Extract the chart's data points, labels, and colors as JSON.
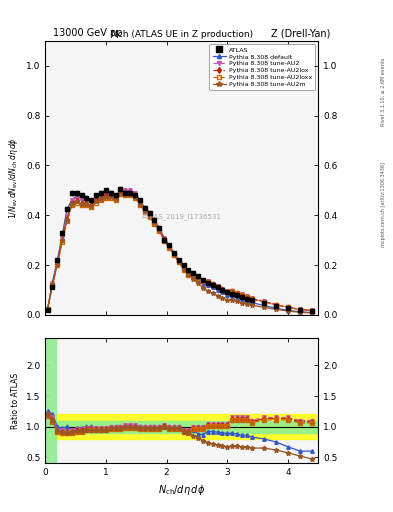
{
  "title": "Nch (ATLAS UE in Z production)",
  "top_left_label": "13000 GeV pp",
  "top_right_label": "Z (Drell-Yan)",
  "watermark": "ATLAS_2019_I1736531",
  "rivet_label": "Rivet 3.1.10, ≥ 2.6M events",
  "arxiv_label": "mcplots.cern.ch [arXiv:1306.3436]",
  "xlim": [
    0,
    4.5
  ],
  "ylim_main": [
    0,
    1.1
  ],
  "ylim_ratio": [
    0.4,
    2.45
  ],
  "x": [
    0.04,
    0.12,
    0.2,
    0.28,
    0.36,
    0.44,
    0.52,
    0.6,
    0.68,
    0.76,
    0.84,
    0.92,
    1.0,
    1.08,
    1.16,
    1.24,
    1.32,
    1.4,
    1.48,
    1.56,
    1.64,
    1.72,
    1.8,
    1.88,
    1.96,
    2.04,
    2.12,
    2.2,
    2.28,
    2.36,
    2.44,
    2.52,
    2.6,
    2.68,
    2.76,
    2.84,
    2.92,
    3.0,
    3.08,
    3.16,
    3.24,
    3.32,
    3.4,
    3.6,
    3.8,
    4.0,
    4.2,
    4.4
  ],
  "atlas_y": [
    0.02,
    0.11,
    0.22,
    0.33,
    0.425,
    0.49,
    0.49,
    0.48,
    0.47,
    0.46,
    0.48,
    0.49,
    0.5,
    0.49,
    0.48,
    0.505,
    0.49,
    0.49,
    0.48,
    0.46,
    0.43,
    0.41,
    0.38,
    0.35,
    0.3,
    0.28,
    0.25,
    0.22,
    0.2,
    0.18,
    0.17,
    0.155,
    0.14,
    0.13,
    0.12,
    0.11,
    0.1,
    0.09,
    0.085,
    0.078,
    0.072,
    0.065,
    0.06,
    0.047,
    0.036,
    0.027,
    0.02,
    0.016
  ],
  "atlas_yerr": [
    0.002,
    0.004,
    0.005,
    0.006,
    0.007,
    0.008,
    0.007,
    0.007,
    0.007,
    0.007,
    0.007,
    0.007,
    0.007,
    0.007,
    0.007,
    0.007,
    0.007,
    0.007,
    0.007,
    0.006,
    0.006,
    0.006,
    0.005,
    0.005,
    0.005,
    0.004,
    0.004,
    0.004,
    0.003,
    0.003,
    0.003,
    0.003,
    0.002,
    0.002,
    0.002,
    0.002,
    0.002,
    0.002,
    0.002,
    0.001,
    0.001,
    0.001,
    0.001,
    0.001,
    0.001,
    0.001,
    0.001,
    0.001
  ],
  "pdef_ratio": [
    1.25,
    1.2,
    1.0,
    0.97,
    1.0,
    0.94,
    0.98,
    0.98,
    1.0,
    1.0,
    0.98,
    0.98,
    0.98,
    0.98,
    0.98,
    1.0,
    1.02,
    1.02,
    1.02,
    1.0,
    1.0,
    1.0,
    1.0,
    1.0,
    1.03,
    1.0,
    1.0,
    1.0,
    0.95,
    0.94,
    0.94,
    0.88,
    0.87,
    0.92,
    0.92,
    0.91,
    0.9,
    0.89,
    0.89,
    0.88,
    0.86,
    0.86,
    0.83,
    0.8,
    0.75,
    0.67,
    0.6,
    0.6
  ],
  "pau2_ratio": [
    1.2,
    1.15,
    0.95,
    0.94,
    0.93,
    0.94,
    0.96,
    0.96,
    0.98,
    0.98,
    0.98,
    0.98,
    0.98,
    1.0,
    1.0,
    1.0,
    1.02,
    1.02,
    1.02,
    1.0,
    1.0,
    1.0,
    1.0,
    1.0,
    1.03,
    1.0,
    1.0,
    1.0,
    0.95,
    0.94,
    1.0,
    1.0,
    1.0,
    1.05,
    1.05,
    1.05,
    1.05,
    1.05,
    1.15,
    1.15,
    1.15,
    1.15,
    1.1,
    1.15,
    1.15,
    1.15,
    1.1,
    1.1
  ],
  "pau2lox_ratio": [
    1.2,
    1.1,
    0.93,
    0.91,
    0.91,
    0.92,
    0.94,
    0.94,
    0.96,
    0.96,
    0.96,
    0.96,
    0.96,
    0.98,
    0.98,
    0.98,
    1.0,
    1.0,
    1.0,
    0.98,
    0.98,
    0.98,
    0.98,
    0.98,
    1.01,
    0.98,
    0.98,
    0.98,
    0.93,
    0.92,
    0.98,
    0.98,
    0.98,
    1.03,
    1.03,
    1.03,
    1.03,
    1.03,
    1.13,
    1.13,
    1.13,
    1.13,
    1.08,
    1.13,
    1.13,
    1.13,
    1.08,
    1.08
  ],
  "pau2loxx_ratio": [
    1.18,
    1.08,
    0.91,
    0.89,
    0.89,
    0.9,
    0.92,
    0.92,
    0.94,
    0.94,
    0.94,
    0.94,
    0.94,
    0.96,
    0.96,
    0.96,
    0.98,
    0.98,
    0.98,
    0.96,
    0.96,
    0.96,
    0.96,
    0.96,
    0.99,
    0.96,
    0.96,
    0.96,
    0.91,
    0.9,
    0.96,
    0.96,
    0.96,
    1.01,
    1.01,
    1.01,
    1.01,
    1.01,
    1.11,
    1.11,
    1.11,
    1.11,
    1.06,
    1.11,
    1.11,
    1.11,
    1.06,
    1.06
  ],
  "pau2m_ratio": [
    1.2,
    1.12,
    0.93,
    0.91,
    0.9,
    0.91,
    0.93,
    0.93,
    0.95,
    0.95,
    0.95,
    0.95,
    0.95,
    0.97,
    0.97,
    0.97,
    0.99,
    0.99,
    0.99,
    0.97,
    0.97,
    0.97,
    0.97,
    0.97,
    1.0,
    0.97,
    0.97,
    0.97,
    0.92,
    0.91,
    0.85,
    0.82,
    0.77,
    0.74,
    0.72,
    0.7,
    0.69,
    0.67,
    0.69,
    0.69,
    0.67,
    0.67,
    0.65,
    0.65,
    0.62,
    0.57,
    0.52,
    0.47
  ],
  "color_default": "#3355cc",
  "color_au2": "#cc55aa",
  "color_au2lox": "#bb2200",
  "color_au2loxx": "#cc6600",
  "color_au2m": "#995522",
  "color_atlas": "#000000",
  "bg_color": "#f5f5f5"
}
